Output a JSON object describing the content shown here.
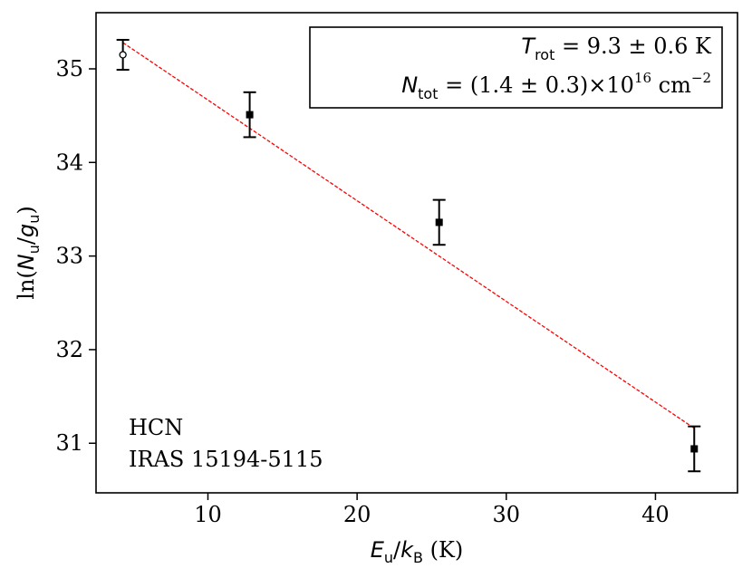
{
  "chart_data": {
    "type": "scatter",
    "xlabel": {
      "var": "E",
      "sub1": "u",
      "sep": "/",
      "var2": "k",
      "sub2": "B",
      "unit": " (K)"
    },
    "ylabel": {
      "prefix": "ln(",
      "var": "N",
      "sub1": "u",
      "sep": "/",
      "var2": "g",
      "sub2": "u",
      "suffix": ")"
    },
    "xlim": [
      2.5,
      45.5
    ],
    "ylim": [
      30.47,
      35.6
    ],
    "xticks": [
      10,
      20,
      30,
      40
    ],
    "yticks": [
      31,
      32,
      33,
      34,
      35
    ],
    "grid": false,
    "points": [
      {
        "x": 4.3,
        "y": 35.15,
        "err": 0.16,
        "marker": "open-circle"
      },
      {
        "x": 12.8,
        "y": 34.51,
        "err": 0.24,
        "marker": "filled-square"
      },
      {
        "x": 25.5,
        "y": 33.36,
        "err": 0.24,
        "marker": "filled-square"
      },
      {
        "x": 42.6,
        "y": 30.94,
        "err": 0.24,
        "marker": "filled-square"
      }
    ],
    "fit": {
      "x": [
        4.3,
        42.6
      ],
      "y": [
        35.28,
        31.16
      ],
      "color": "#ff0000",
      "style": "dashed"
    },
    "annotation": {
      "line1": {
        "var": "T",
        "sub": "rot",
        "text": " = 9.3 ± 0.6 K"
      },
      "line2": {
        "var": "N",
        "sub": "tot",
        "text": " = (1.4 ± 0.3)×10",
        "sup": "16",
        "unit": " cm",
        "unit_sup": "−2"
      }
    },
    "labels": {
      "species": "HCN",
      "source": "IRAS 15194-5115"
    }
  }
}
